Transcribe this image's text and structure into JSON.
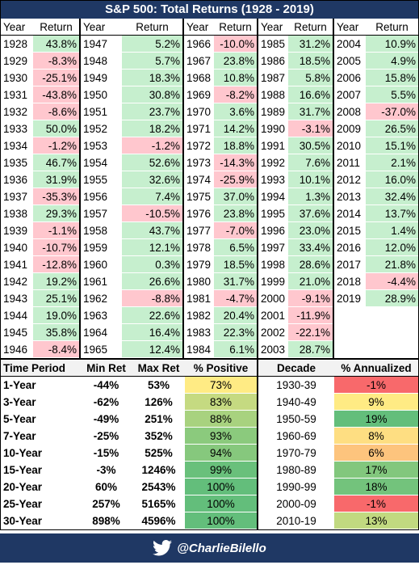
{
  "title": "S&P 500: Total Returns (1928 - 2019)",
  "returns_table": {
    "header": [
      "Year",
      "Return",
      "Year",
      "Return",
      "Year",
      "Return",
      "Year",
      "Return",
      "Year",
      "Return"
    ],
    "groups": [
      {
        "years": [
          1928,
          1929,
          1930,
          1931,
          1932,
          1933,
          1934,
          1935,
          1936,
          1937,
          1938,
          1939,
          1940,
          1941,
          1942,
          1943,
          1944,
          1945,
          1946
        ],
        "returns": [
          "43.8%",
          "-8.3%",
          "-25.1%",
          "-43.8%",
          "-8.6%",
          "50.0%",
          "-1.2%",
          "46.7%",
          "31.9%",
          "-35.3%",
          "29.3%",
          "-1.1%",
          "-10.7%",
          "-12.8%",
          "19.2%",
          "25.1%",
          "19.0%",
          "35.8%",
          "-8.4%"
        ]
      },
      {
        "years": [
          1947,
          1948,
          1949,
          1950,
          1951,
          1952,
          1953,
          1954,
          1955,
          1956,
          1957,
          1958,
          1959,
          1960,
          1961,
          1962,
          1963,
          1964,
          1965
        ],
        "returns": [
          "5.2%",
          "5.7%",
          "18.3%",
          "30.8%",
          "23.7%",
          "18.2%",
          "-1.2%",
          "52.6%",
          "32.6%",
          "7.4%",
          "-10.5%",
          "43.7%",
          "12.1%",
          "0.3%",
          "26.6%",
          "-8.8%",
          "22.6%",
          "16.4%",
          "12.4%"
        ]
      },
      {
        "years": [
          1966,
          1967,
          1968,
          1969,
          1970,
          1971,
          1972,
          1973,
          1974,
          1975,
          1976,
          1977,
          1978,
          1979,
          1980,
          1981,
          1982,
          1983,
          1984
        ],
        "returns": [
          "-10.0%",
          "23.8%",
          "10.8%",
          "-8.2%",
          "3.6%",
          "14.2%",
          "18.8%",
          "-14.3%",
          "-25.9%",
          "37.0%",
          "23.8%",
          "-7.0%",
          "6.5%",
          "18.5%",
          "31.7%",
          "-4.7%",
          "20.4%",
          "22.3%",
          "6.1%"
        ]
      },
      {
        "years": [
          1985,
          1986,
          1987,
          1988,
          1989,
          1990,
          1991,
          1992,
          1993,
          1994,
          1995,
          1996,
          1997,
          1998,
          1999,
          2000,
          2001,
          2002,
          2003
        ],
        "returns": [
          "31.2%",
          "18.5%",
          "5.8%",
          "16.6%",
          "31.7%",
          "-3.1%",
          "30.5%",
          "7.6%",
          "10.1%",
          "1.3%",
          "37.6%",
          "23.0%",
          "33.4%",
          "28.6%",
          "21.0%",
          "-9.1%",
          "-11.9%",
          "-22.1%",
          "28.7%"
        ]
      },
      {
        "years": [
          2004,
          2005,
          2006,
          2007,
          2008,
          2009,
          2010,
          2011,
          2012,
          2013,
          2014,
          2015,
          2016,
          2017,
          2018,
          2019
        ],
        "returns": [
          "10.9%",
          "4.9%",
          "15.8%",
          "5.5%",
          "-37.0%",
          "26.5%",
          "15.1%",
          "2.1%",
          "16.0%",
          "32.4%",
          "13.7%",
          "1.4%",
          "12.0%",
          "21.8%",
          "-4.4%",
          "28.9%"
        ]
      }
    ]
  },
  "summary_table": {
    "header": [
      "Time Period",
      "Min Ret",
      "Max Ret",
      "% Positive",
      "Decade",
      "% Annualized"
    ],
    "rows": [
      [
        "1-Year",
        "-44%",
        "53%",
        "73%",
        "1930-39",
        "-1%"
      ],
      [
        "3-Year",
        "-62%",
        "126%",
        "83%",
        "1940-49",
        "9%"
      ],
      [
        "5-Year",
        "-49%",
        "251%",
        "88%",
        "1950-59",
        "19%"
      ],
      [
        "7-Year",
        "-25%",
        "352%",
        "93%",
        "1960-69",
        "8%"
      ],
      [
        "10-Year",
        "-15%",
        "525%",
        "94%",
        "1970-79",
        "6%"
      ],
      [
        "15-Year",
        "-3%",
        "1246%",
        "99%",
        "1980-89",
        "17%"
      ],
      [
        "20-Year",
        "60%",
        "2543%",
        "100%",
        "1990-99",
        "18%"
      ],
      [
        "25-Year",
        "257%",
        "5165%",
        "100%",
        "2000-09",
        "-1%"
      ],
      [
        "30-Year",
        "898%",
        "4596%",
        "100%",
        "2010-19",
        "13%"
      ]
    ]
  },
  "footer": {
    "handle": "@CharlieBilello"
  }
}
